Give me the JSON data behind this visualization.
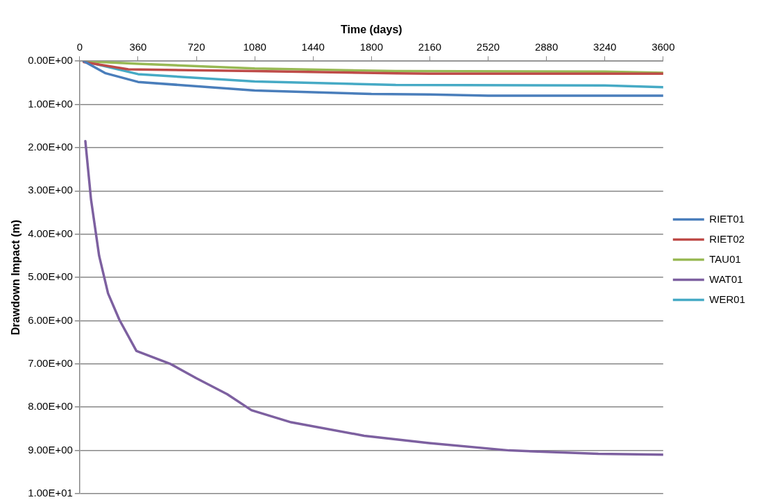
{
  "chart_data": {
    "type": "line",
    "xlabel": "Time (days)",
    "ylabel": "Drawdown Impact (m)",
    "xlim": [
      0,
      3600
    ],
    "xticks": [
      0,
      360,
      720,
      1080,
      1440,
      1800,
      2160,
      2520,
      2880,
      3240,
      3600
    ],
    "ylim": [
      10,
      0
    ],
    "yticks": [
      {
        "value": 0,
        "label": "0.00E+00"
      },
      {
        "value": 1,
        "label": "1.00E+00"
      },
      {
        "value": 2,
        "label": "2.00E+00"
      },
      {
        "value": 3,
        "label": "3.00E+00"
      },
      {
        "value": 4,
        "label": "4.00E+00"
      },
      {
        "value": 5,
        "label": "5.00E+00"
      },
      {
        "value": 6,
        "label": "6.00E+00"
      },
      {
        "value": 7,
        "label": "7.00E+00"
      },
      {
        "value": 8,
        "label": "8.00E+00"
      },
      {
        "value": 9,
        "label": "9.00E+00"
      },
      {
        "value": 10,
        "label": "1.00E+01"
      }
    ],
    "grid": "y",
    "legend": "right",
    "marker": "none",
    "line_style": "solid",
    "series": [
      {
        "name": "RIET01",
        "color": "#4a7ebb",
        "x": [
          25,
          160,
          360,
          1080,
          1800,
          2160,
          2520,
          3600
        ],
        "values": [
          0,
          0.28,
          0.48,
          0.68,
          0.76,
          0.77,
          0.8,
          0.8
        ]
      },
      {
        "name": "RIET02",
        "color": "#be4b48",
        "x": [
          25,
          300,
          1080,
          1950,
          2160,
          3600
        ],
        "values": [
          0.02,
          0.19,
          0.23,
          0.28,
          0.29,
          0.29
        ]
      },
      {
        "name": "TAU01",
        "color": "#98b954",
        "x": [
          25,
          360,
          1080,
          1950,
          3240,
          3600
        ],
        "values": [
          0,
          0.06,
          0.17,
          0.23,
          0.24,
          0.27
        ]
      },
      {
        "name": "WAT01",
        "color": "#7d60a0",
        "x": [
          35,
          70,
          120,
          175,
          245,
          350,
          560,
          720,
          910,
          1060,
          1305,
          1755,
          2155,
          2650,
          3200,
          3600
        ],
        "values": [
          1.85,
          3.2,
          4.5,
          5.37,
          5.98,
          6.7,
          7.0,
          7.33,
          7.7,
          8.07,
          8.35,
          8.66,
          8.83,
          9.0,
          9.08,
          9.1
        ]
      },
      {
        "name": "WER01",
        "color": "#46aac5",
        "x": [
          25,
          360,
          1080,
          1950,
          3240,
          3600
        ],
        "values": [
          0,
          0.3,
          0.47,
          0.55,
          0.56,
          0.6
        ]
      }
    ]
  }
}
